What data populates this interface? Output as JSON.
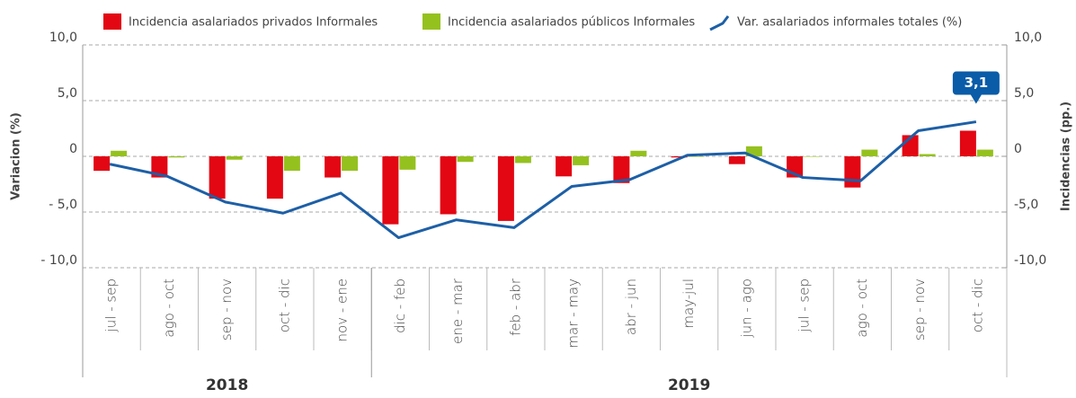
{
  "chart_data": {
    "type": "bar-line",
    "y_label": "Variacion (%)",
    "y2_label": "Incidencias (pp.)",
    "categories": [
      "jul - sep",
      "ago - oct",
      "sep - nov",
      "oct - dic",
      "nov - ene",
      "dic - feb",
      "ene - mar",
      "feb - abr",
      "mar - may",
      "abr - jun",
      "may-jul",
      "jun - ago",
      "jul - sep",
      "ago - oct",
      "sep - nov",
      "oct - dic"
    ],
    "year_groups": [
      {
        "label": "2018",
        "from": 0,
        "to": 4
      },
      {
        "label": "2019",
        "from": 5,
        "to": 15
      }
    ],
    "series": [
      {
        "name": "Incidencia asalariados privados Informales",
        "type": "bar",
        "axis": "y2",
        "color": "#e30613",
        "values": [
          -1.3,
          -1.9,
          -3.8,
          -3.8,
          -1.9,
          -6.1,
          -5.2,
          -5.8,
          -1.8,
          -2.4,
          -0.1,
          -0.7,
          -1.9,
          -2.8,
          1.9,
          2.3
        ]
      },
      {
        "name": "Incidencia asalariados públicos Informales",
        "type": "bar",
        "axis": "y2",
        "color": "#95c11f",
        "values": [
          0.5,
          -0.1,
          -0.3,
          -1.3,
          -1.3,
          -1.2,
          -0.5,
          -0.6,
          -0.8,
          0.5,
          0.0,
          0.9,
          0.0,
          0.6,
          0.2,
          0.6
        ]
      },
      {
        "name": "Var. asalariados informales totales (%)",
        "type": "line",
        "color": "#1d5fa6",
        "values": [
          -0.7,
          -1.8,
          -4.1,
          -5.1,
          -3.3,
          -7.3,
          -5.7,
          -6.4,
          -2.7,
          -2.1,
          0.1,
          0.3,
          -1.9,
          -2.2,
          2.3,
          3.1
        ],
        "value_labels": [
          null,
          null,
          null,
          null,
          null,
          null,
          null,
          null,
          null,
          null,
          null,
          null,
          null,
          null,
          null,
          "3,1"
        ]
      }
    ],
    "ylim": [
      -10,
      10
    ],
    "yticks": [
      {
        "value": -10,
        "label": "- 10,0"
      },
      {
        "value": -5,
        "label": "- 5,0"
      },
      0,
      {
        "value": 5,
        "label": "5,0"
      },
      {
        "value": 10,
        "label": "10,0"
      }
    ],
    "y2lim": [
      -10,
      10
    ],
    "y2ticks": [
      {
        "value": -10,
        "label": "-10,0"
      },
      {
        "value": -5,
        "label": "-5,0"
      },
      0,
      {
        "value": 5,
        "label": "5,0"
      },
      {
        "value": 10,
        "label": "10,0"
      }
    ],
    "grid": true,
    "legend": "top"
  }
}
